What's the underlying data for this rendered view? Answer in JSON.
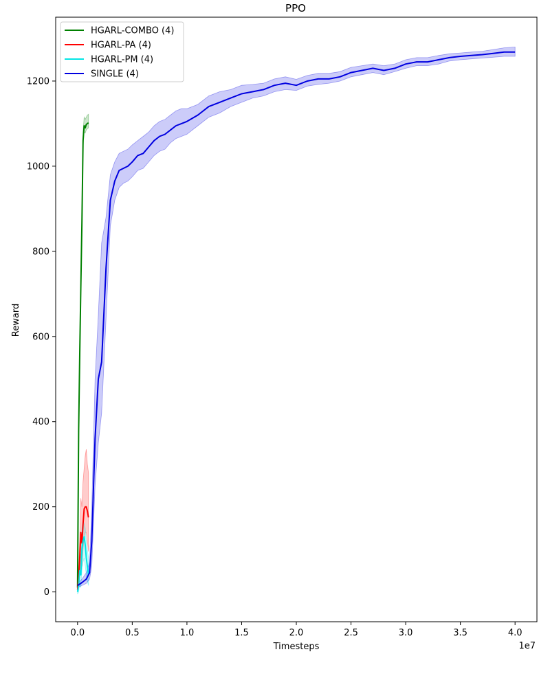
{
  "chart_data": {
    "type": "line",
    "title": "PPO",
    "xlabel": "Timesteps",
    "ylabel": "Reward",
    "x_offset_label": "1e7",
    "xlim": [
      -2000000,
      42000000
    ],
    "ylim": [
      -70,
      1350
    ],
    "x_ticks": [
      0,
      5000000,
      10000000,
      15000000,
      20000000,
      25000000,
      30000000,
      35000000,
      40000000
    ],
    "x_tick_labels": [
      "0.0",
      "0.5",
      "1.0",
      "1.5",
      "2.0",
      "2.5",
      "3.0",
      "3.5",
      "4.0"
    ],
    "y_ticks": [
      0,
      200,
      400,
      600,
      800,
      1000,
      1200
    ],
    "y_tick_labels": [
      "0",
      "200",
      "400",
      "600",
      "800",
      "1000",
      "1200"
    ],
    "grid": false,
    "legend_position": "top-left",
    "series": [
      {
        "name": "HGARL-COMBO (4)",
        "color": "#008000",
        "x": [
          0,
          100000,
          200000,
          300000,
          400000,
          500000,
          600000,
          700000,
          800000,
          900000,
          1000000
        ],
        "y": [
          10,
          380,
          560,
          720,
          870,
          1060,
          1095,
          1090,
          1098,
          1100,
          1102
        ],
        "lower": [
          0,
          360,
          540,
          700,
          850,
          1045,
          1080,
          1078,
          1085,
          1088,
          1090
        ],
        "upper": [
          20,
          400,
          580,
          740,
          890,
          1080,
          1115,
          1110,
          1115,
          1120,
          1122
        ]
      },
      {
        "name": "HGARL-PA (4)",
        "color": "#ff0000",
        "x": [
          0,
          100000,
          200000,
          300000,
          400000,
          500000,
          600000,
          700000,
          800000,
          900000,
          1000000
        ],
        "y": [
          5,
          30,
          80,
          140,
          115,
          160,
          195,
          200,
          200,
          190,
          175
        ],
        "lower": [
          0,
          10,
          40,
          90,
          60,
          100,
          130,
          140,
          140,
          120,
          95
        ],
        "upper": [
          20,
          60,
          130,
          220,
          200,
          260,
          290,
          320,
          335,
          300,
          280
        ]
      },
      {
        "name": "HGARL-PM (4)",
        "color": "#00e5e5",
        "x": [
          0,
          100000,
          200000,
          300000,
          400000,
          500000,
          600000,
          700000,
          800000,
          900000,
          1000000
        ],
        "y": [
          0,
          15,
          50,
          40,
          100,
          120,
          130,
          110,
          80,
          60,
          40
        ],
        "lower": [
          -5,
          0,
          20,
          10,
          50,
          70,
          80,
          60,
          40,
          25,
          15
        ],
        "upper": [
          10,
          40,
          90,
          80,
          150,
          170,
          160,
          150,
          120,
          100,
          80
        ]
      },
      {
        "name": "SINGLE (4)",
        "color": "#0000e0",
        "x": [
          0,
          400000,
          800000,
          1100000,
          1300000,
          1600000,
          1900000,
          2200000,
          2600000,
          3000000,
          3400000,
          3800000,
          4200000,
          4600000,
          5000000,
          5500000,
          6000000,
          6500000,
          7000000,
          7500000,
          8000000,
          8500000,
          9000000,
          9500000,
          10000000,
          11000000,
          12000000,
          13000000,
          14000000,
          15000000,
          16000000,
          17000000,
          18000000,
          19000000,
          20000000,
          21000000,
          22000000,
          23000000,
          24000000,
          25000000,
          26000000,
          27000000,
          28000000,
          29000000,
          30000000,
          31000000,
          32000000,
          33000000,
          34000000,
          35000000,
          36000000,
          37000000,
          38000000,
          39000000,
          40000000
        ],
        "y": [
          15,
          22,
          30,
          45,
          120,
          360,
          500,
          540,
          760,
          920,
          965,
          990,
          995,
          1000,
          1010,
          1025,
          1030,
          1045,
          1060,
          1070,
          1075,
          1085,
          1095,
          1100,
          1105,
          1120,
          1140,
          1150,
          1160,
          1170,
          1175,
          1180,
          1190,
          1195,
          1190,
          1200,
          1205,
          1205,
          1210,
          1220,
          1225,
          1230,
          1225,
          1230,
          1240,
          1245,
          1245,
          1250,
          1255,
          1258,
          1260,
          1262,
          1265,
          1268,
          1268
        ],
        "lower": [
          10,
          15,
          20,
          30,
          60,
          250,
          350,
          420,
          640,
          860,
          920,
          950,
          960,
          965,
          975,
          990,
          995,
          1010,
          1025,
          1035,
          1040,
          1055,
          1065,
          1070,
          1075,
          1095,
          1115,
          1125,
          1140,
          1150,
          1160,
          1165,
          1175,
          1180,
          1178,
          1188,
          1192,
          1195,
          1200,
          1210,
          1215,
          1220,
          1215,
          1222,
          1230,
          1236,
          1236,
          1240,
          1247,
          1250,
          1252,
          1254,
          1256,
          1258,
          1258
        ],
        "upper": [
          20,
          30,
          45,
          70,
          200,
          500,
          650,
          820,
          880,
          980,
          1010,
          1030,
          1035,
          1040,
          1050,
          1060,
          1070,
          1080,
          1095,
          1105,
          1110,
          1120,
          1130,
          1135,
          1135,
          1145,
          1165,
          1175,
          1180,
          1190,
          1192,
          1195,
          1205,
          1210,
          1204,
          1213,
          1218,
          1218,
          1222,
          1232,
          1236,
          1240,
          1236,
          1240,
          1250,
          1255,
          1255,
          1260,
          1264,
          1266,
          1268,
          1270,
          1274,
          1278,
          1280
        ]
      }
    ]
  }
}
